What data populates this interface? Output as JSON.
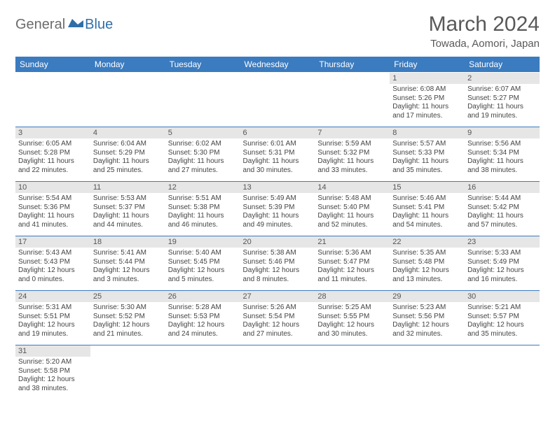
{
  "brand": {
    "general": "General",
    "blue": "Blue"
  },
  "title": "March 2024",
  "location": "Towada, Aomori, Japan",
  "colors": {
    "header_bg": "#3b7bbf",
    "header_text": "#ffffff",
    "daynum_bg": "#e6e6e6",
    "border": "#3b7bbf",
    "title_color": "#595959",
    "logo_blue": "#2f6fa8",
    "logo_gray": "#6b6b6b"
  },
  "weekdays": [
    "Sunday",
    "Monday",
    "Tuesday",
    "Wednesday",
    "Thursday",
    "Friday",
    "Saturday"
  ],
  "weeks": [
    [
      null,
      null,
      null,
      null,
      null,
      {
        "n": "1",
        "sr": "Sunrise: 6:08 AM",
        "ss": "Sunset: 5:26 PM",
        "dl": "Daylight: 11 hours and 17 minutes."
      },
      {
        "n": "2",
        "sr": "Sunrise: 6:07 AM",
        "ss": "Sunset: 5:27 PM",
        "dl": "Daylight: 11 hours and 19 minutes."
      }
    ],
    [
      {
        "n": "3",
        "sr": "Sunrise: 6:05 AM",
        "ss": "Sunset: 5:28 PM",
        "dl": "Daylight: 11 hours and 22 minutes."
      },
      {
        "n": "4",
        "sr": "Sunrise: 6:04 AM",
        "ss": "Sunset: 5:29 PM",
        "dl": "Daylight: 11 hours and 25 minutes."
      },
      {
        "n": "5",
        "sr": "Sunrise: 6:02 AM",
        "ss": "Sunset: 5:30 PM",
        "dl": "Daylight: 11 hours and 27 minutes."
      },
      {
        "n": "6",
        "sr": "Sunrise: 6:01 AM",
        "ss": "Sunset: 5:31 PM",
        "dl": "Daylight: 11 hours and 30 minutes."
      },
      {
        "n": "7",
        "sr": "Sunrise: 5:59 AM",
        "ss": "Sunset: 5:32 PM",
        "dl": "Daylight: 11 hours and 33 minutes."
      },
      {
        "n": "8",
        "sr": "Sunrise: 5:57 AM",
        "ss": "Sunset: 5:33 PM",
        "dl": "Daylight: 11 hours and 35 minutes."
      },
      {
        "n": "9",
        "sr": "Sunrise: 5:56 AM",
        "ss": "Sunset: 5:34 PM",
        "dl": "Daylight: 11 hours and 38 minutes."
      }
    ],
    [
      {
        "n": "10",
        "sr": "Sunrise: 5:54 AM",
        "ss": "Sunset: 5:36 PM",
        "dl": "Daylight: 11 hours and 41 minutes."
      },
      {
        "n": "11",
        "sr": "Sunrise: 5:53 AM",
        "ss": "Sunset: 5:37 PM",
        "dl": "Daylight: 11 hours and 44 minutes."
      },
      {
        "n": "12",
        "sr": "Sunrise: 5:51 AM",
        "ss": "Sunset: 5:38 PM",
        "dl": "Daylight: 11 hours and 46 minutes."
      },
      {
        "n": "13",
        "sr": "Sunrise: 5:49 AM",
        "ss": "Sunset: 5:39 PM",
        "dl": "Daylight: 11 hours and 49 minutes."
      },
      {
        "n": "14",
        "sr": "Sunrise: 5:48 AM",
        "ss": "Sunset: 5:40 PM",
        "dl": "Daylight: 11 hours and 52 minutes."
      },
      {
        "n": "15",
        "sr": "Sunrise: 5:46 AM",
        "ss": "Sunset: 5:41 PM",
        "dl": "Daylight: 11 hours and 54 minutes."
      },
      {
        "n": "16",
        "sr": "Sunrise: 5:44 AM",
        "ss": "Sunset: 5:42 PM",
        "dl": "Daylight: 11 hours and 57 minutes."
      }
    ],
    [
      {
        "n": "17",
        "sr": "Sunrise: 5:43 AM",
        "ss": "Sunset: 5:43 PM",
        "dl": "Daylight: 12 hours and 0 minutes."
      },
      {
        "n": "18",
        "sr": "Sunrise: 5:41 AM",
        "ss": "Sunset: 5:44 PM",
        "dl": "Daylight: 12 hours and 3 minutes."
      },
      {
        "n": "19",
        "sr": "Sunrise: 5:40 AM",
        "ss": "Sunset: 5:45 PM",
        "dl": "Daylight: 12 hours and 5 minutes."
      },
      {
        "n": "20",
        "sr": "Sunrise: 5:38 AM",
        "ss": "Sunset: 5:46 PM",
        "dl": "Daylight: 12 hours and 8 minutes."
      },
      {
        "n": "21",
        "sr": "Sunrise: 5:36 AM",
        "ss": "Sunset: 5:47 PM",
        "dl": "Daylight: 12 hours and 11 minutes."
      },
      {
        "n": "22",
        "sr": "Sunrise: 5:35 AM",
        "ss": "Sunset: 5:48 PM",
        "dl": "Daylight: 12 hours and 13 minutes."
      },
      {
        "n": "23",
        "sr": "Sunrise: 5:33 AM",
        "ss": "Sunset: 5:49 PM",
        "dl": "Daylight: 12 hours and 16 minutes."
      }
    ],
    [
      {
        "n": "24",
        "sr": "Sunrise: 5:31 AM",
        "ss": "Sunset: 5:51 PM",
        "dl": "Daylight: 12 hours and 19 minutes."
      },
      {
        "n": "25",
        "sr": "Sunrise: 5:30 AM",
        "ss": "Sunset: 5:52 PM",
        "dl": "Daylight: 12 hours and 21 minutes."
      },
      {
        "n": "26",
        "sr": "Sunrise: 5:28 AM",
        "ss": "Sunset: 5:53 PM",
        "dl": "Daylight: 12 hours and 24 minutes."
      },
      {
        "n": "27",
        "sr": "Sunrise: 5:26 AM",
        "ss": "Sunset: 5:54 PM",
        "dl": "Daylight: 12 hours and 27 minutes."
      },
      {
        "n": "28",
        "sr": "Sunrise: 5:25 AM",
        "ss": "Sunset: 5:55 PM",
        "dl": "Daylight: 12 hours and 30 minutes."
      },
      {
        "n": "29",
        "sr": "Sunrise: 5:23 AM",
        "ss": "Sunset: 5:56 PM",
        "dl": "Daylight: 12 hours and 32 minutes."
      },
      {
        "n": "30",
        "sr": "Sunrise: 5:21 AM",
        "ss": "Sunset: 5:57 PM",
        "dl": "Daylight: 12 hours and 35 minutes."
      }
    ],
    [
      {
        "n": "31",
        "sr": "Sunrise: 5:20 AM",
        "ss": "Sunset: 5:58 PM",
        "dl": "Daylight: 12 hours and 38 minutes."
      },
      null,
      null,
      null,
      null,
      null,
      null
    ]
  ]
}
